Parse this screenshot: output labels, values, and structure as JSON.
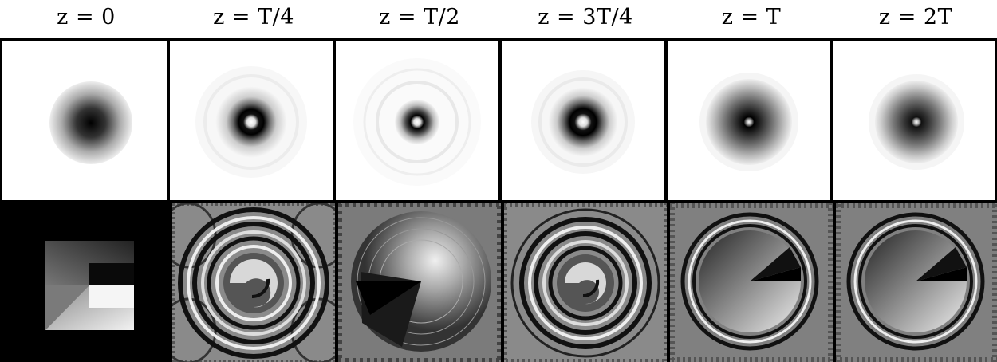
{
  "columns": [
    {
      "label": "z = 0"
    },
    {
      "label": "z = T/4"
    },
    {
      "label": "z = T/2"
    },
    {
      "label": "z = 3T/4"
    },
    {
      "label": "z = T"
    },
    {
      "label": "z = 2T"
    }
  ]
}
